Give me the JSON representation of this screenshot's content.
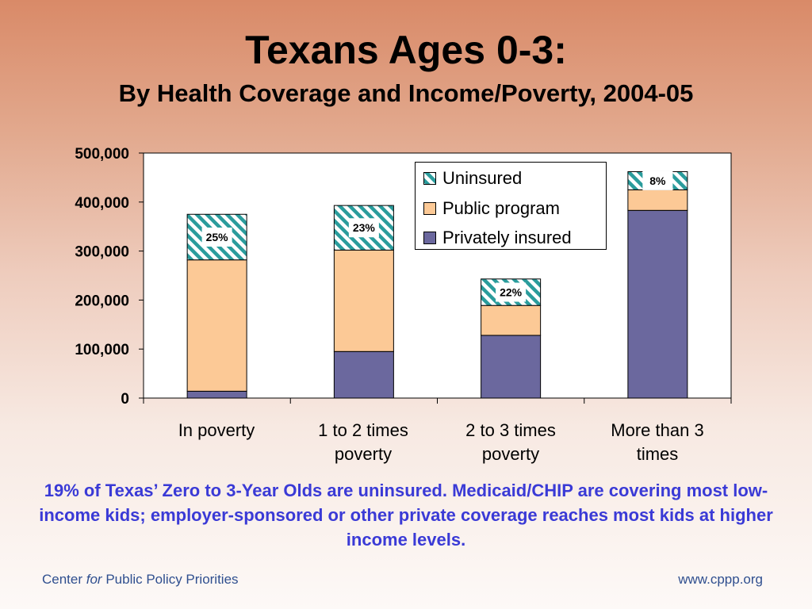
{
  "title": "Texans Ages 0-3:",
  "subtitle": "By Health Coverage and Income/Poverty, 2004-05",
  "caption": "19% of Texas’ Zero to 3-Year Olds are uninsured.  Medicaid/CHIP are covering most low-income kids; employer-sponsored or other private coverage reaches most kids at higher income levels.",
  "footer": {
    "left_pre": "Center ",
    "left_em": "for",
    "left_post": " Public Policy Priorities",
    "right": "www.cppp.org"
  },
  "colors": {
    "privately_insured": "#6b689e",
    "public_program": "#fcc996",
    "uninsured_stripe": "#2a9c9c",
    "caption": "#3a3ad6",
    "footer": "#2f4f8f"
  },
  "chart_data": {
    "type": "bar",
    "stacked": true,
    "categories": [
      "In poverty",
      "1 to 2 times\npoverty",
      "2 to 3 times\npoverty",
      "More than 3\ntimes"
    ],
    "series": [
      {
        "name": "Privately insured",
        "values": [
          14000,
          95000,
          128000,
          383000
        ]
      },
      {
        "name": "Public program",
        "values": [
          268000,
          207000,
          61000,
          42000
        ]
      },
      {
        "name": "Uninsured",
        "values": [
          93000,
          91000,
          54000,
          37000
        ]
      }
    ],
    "uninsured_labels": [
      "25%",
      "23%",
      "22%",
      "8%"
    ],
    "ylim": [
      0,
      500000
    ],
    "yticks": [
      0,
      100000,
      200000,
      300000,
      400000,
      500000
    ],
    "ytick_labels": [
      "0",
      "100,000",
      "200,000",
      "300,000",
      "400,000",
      "500,000"
    ],
    "legend": [
      "Uninsured",
      "Public program",
      "Privately insured"
    ],
    "legend_position": "top-right",
    "grid": false
  }
}
